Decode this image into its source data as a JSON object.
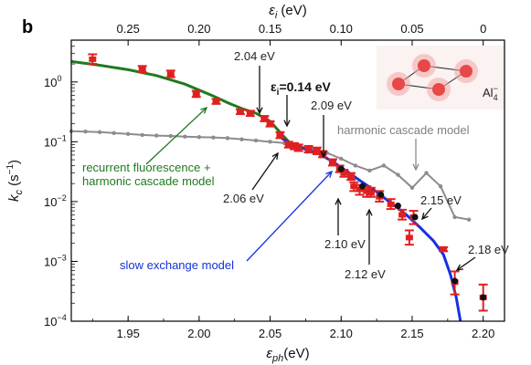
{
  "chart_data": {
    "type": "scatter",
    "panel_label": "b",
    "xlabel": "ε_ph(eV)",
    "xlabel_main": "ε",
    "xlabel_sub": "ph",
    "xlabel_unit": "(eV)",
    "top_xlabel": "ε_i (eV)",
    "top_xlabel_main": "ε",
    "top_xlabel_sub": "i",
    "top_xlabel_unit": " (eV)",
    "ylabel": "k_c (s^-1)",
    "ylabel_main": "k",
    "ylabel_sub": "c",
    "ylabel_unit": " (s",
    "ylabel_sup": "−1",
    "ylabel_close": ")",
    "xlim": [
      1.91,
      2.215
    ],
    "ylim": [
      0.0001,
      5
    ],
    "yscale": "log",
    "x_ticks": [
      "1.95",
      "2.00",
      "2.05",
      "2.10",
      "2.15",
      "2.20"
    ],
    "y_ticks": [
      {
        "value": 1,
        "label": "10",
        "sup": "0"
      },
      {
        "value": 0.1,
        "label": "10",
        "sup": "−1"
      },
      {
        "value": 0.01,
        "label": "10",
        "sup": "−2"
      },
      {
        "value": 0.001,
        "label": "10",
        "sup": "−3"
      },
      {
        "value": 0.0001,
        "label": "10",
        "sup": "−4"
      }
    ],
    "top_ticks": [
      {
        "label": "0.25",
        "ph": 1.95
      },
      {
        "label": "0.20",
        "ph": 2.0
      },
      {
        "label": "0.15",
        "ph": 2.05
      },
      {
        "label": "0.10",
        "ph": 2.1
      },
      {
        "label": "0.05",
        "ph": 2.15
      },
      {
        "label": "0",
        "ph": 2.2
      }
    ],
    "series": [
      {
        "name": "measured (red markers, error bars)",
        "color": "#e02020",
        "points": [
          [
            1.925,
            2.4,
            2.0,
            2.9
          ],
          [
            1.96,
            1.65,
            1.45,
            1.85
          ],
          [
            1.98,
            1.35,
            1.2,
            1.55
          ],
          [
            1.998,
            0.63,
            0.56,
            0.71
          ],
          [
            2.012,
            0.47,
            0.43,
            0.52
          ],
          [
            2.029,
            0.32,
            0.29,
            0.35
          ],
          [
            2.036,
            0.3,
            0.27,
            0.33
          ],
          [
            2.046,
            0.24,
            0.22,
            0.27
          ],
          [
            2.05,
            0.2,
            0.18,
            0.22
          ],
          [
            2.057,
            0.13,
            0.115,
            0.145
          ],
          [
            2.063,
            0.09,
            0.08,
            0.1
          ],
          [
            2.067,
            0.085,
            0.075,
            0.095
          ],
          [
            2.07,
            0.08,
            0.07,
            0.09
          ],
          [
            2.077,
            0.075,
            0.066,
            0.085
          ],
          [
            2.083,
            0.07,
            0.062,
            0.08
          ],
          [
            2.087,
            0.062,
            0.055,
            0.07
          ],
          [
            2.094,
            0.045,
            0.04,
            0.051
          ],
          [
            2.099,
            0.035,
            0.031,
            0.04
          ],
          [
            2.102,
            0.03,
            0.026,
            0.034
          ],
          [
            2.107,
            0.026,
            0.023,
            0.03
          ],
          [
            2.109,
            0.018,
            0.015,
            0.021
          ],
          [
            2.113,
            0.016,
            0.013,
            0.019
          ],
          [
            2.118,
            0.015,
            0.012,
            0.018
          ],
          [
            2.121,
            0.014,
            0.012,
            0.017
          ],
          [
            2.127,
            0.012,
            0.01,
            0.015
          ],
          [
            2.135,
            0.009,
            0.0075,
            0.011
          ],
          [
            2.143,
            0.006,
            0.005,
            0.0073
          ],
          [
            2.151,
            0.0055,
            0.0042,
            0.007
          ],
          [
            2.148,
            0.0025,
            0.0019,
            0.0033
          ],
          [
            2.172,
            0.0016,
            0.00148,
            0.00173
          ],
          [
            2.18,
            0.00045,
            0.00028,
            0.00068
          ],
          [
            2.2,
            0.00025,
            0.00015,
            0.00041
          ]
        ]
      },
      {
        "name": "measured (black markers)",
        "color": "#111111",
        "points": [
          [
            2.1,
            0.035
          ],
          [
            2.115,
            0.018
          ],
          [
            2.128,
            0.013
          ],
          [
            2.14,
            0.0085
          ],
          [
            2.152,
            0.0055
          ],
          [
            2.18,
            0.00047
          ],
          [
            2.2,
            0.00025
          ]
        ]
      },
      {
        "name": "recurrent fluorescence + harmonic cascade model",
        "color": "#1f7a1f",
        "points": [
          [
            1.91,
            2.2
          ],
          [
            1.93,
            1.9
          ],
          [
            1.95,
            1.6
          ],
          [
            1.97,
            1.28
          ],
          [
            1.99,
            0.92
          ],
          [
            2.01,
            0.58
          ],
          [
            2.02,
            0.45
          ],
          [
            2.03,
            0.36
          ],
          [
            2.04,
            0.3
          ],
          [
            2.05,
            0.22
          ],
          [
            2.06,
            0.12
          ],
          [
            2.065,
            0.09
          ]
        ]
      },
      {
        "name": "slow exchange model",
        "color": "#1530e0",
        "points": [
          [
            2.058,
            0.115
          ],
          [
            2.065,
            0.092
          ],
          [
            2.075,
            0.075
          ],
          [
            2.085,
            0.062
          ],
          [
            2.095,
            0.045
          ],
          [
            2.105,
            0.031
          ],
          [
            2.115,
            0.021
          ],
          [
            2.125,
            0.0145
          ],
          [
            2.135,
            0.0095
          ],
          [
            2.145,
            0.0063
          ],
          [
            2.155,
            0.0038
          ],
          [
            2.165,
            0.0022
          ],
          [
            2.172,
            0.0013
          ],
          [
            2.177,
            0.0006
          ],
          [
            2.181,
            0.00025
          ],
          [
            2.184,
            0.0001
          ]
        ]
      },
      {
        "name": "harmonic cascade model",
        "color": "#8c8c8c",
        "points": [
          [
            1.91,
            0.15
          ],
          [
            1.92,
            0.148
          ],
          [
            1.93,
            0.145
          ],
          [
            1.94,
            0.14
          ],
          [
            1.95,
            0.135
          ],
          [
            1.96,
            0.13
          ],
          [
            1.97,
            0.127
          ],
          [
            1.98,
            0.125
          ],
          [
            1.99,
            0.122
          ],
          [
            2.0,
            0.12
          ],
          [
            2.01,
            0.118
          ],
          [
            2.02,
            0.115
          ],
          [
            2.03,
            0.11
          ],
          [
            2.04,
            0.105
          ],
          [
            2.05,
            0.1
          ],
          [
            2.06,
            0.095
          ],
          [
            2.07,
            0.085
          ],
          [
            2.08,
            0.075
          ],
          [
            2.09,
            0.065
          ],
          [
            2.1,
            0.052
          ],
          [
            2.11,
            0.04
          ],
          [
            2.12,
            0.033
          ],
          [
            2.13,
            0.04
          ],
          [
            2.14,
            0.028
          ],
          [
            2.15,
            0.017
          ],
          [
            2.16,
            0.03
          ],
          [
            2.17,
            0.018
          ],
          [
            2.18,
            0.0055
          ],
          [
            2.19,
            0.005
          ]
        ]
      }
    ],
    "annotations": [
      {
        "key": "a204",
        "text": "2.04 eV"
      },
      {
        "key": "a014",
        "text_main": "ε",
        "text_sub": "i",
        "text_val": "=0.14 eV"
      },
      {
        "key": "a209",
        "text": "2.09 eV"
      },
      {
        "key": "a206",
        "text": "2.06 eV"
      },
      {
        "key": "a210",
        "text": "2.10 eV"
      },
      {
        "key": "a212",
        "text": "2.12 eV"
      },
      {
        "key": "a215",
        "text": "2.15 eV"
      },
      {
        "key": "a218",
        "text": "2.18 eV"
      },
      {
        "key": "lab_rf1",
        "text": "recurrent fluorescence +"
      },
      {
        "key": "lab_rf2",
        "text": "harmonic cascade model"
      },
      {
        "key": "lab_hc",
        "text": "harmonic cascade model"
      },
      {
        "key": "lab_se",
        "text": "slow exchange model"
      },
      {
        "key": "inset",
        "text_main": "Al",
        "text_sub": "4",
        "text_sup": "−"
      }
    ]
  }
}
